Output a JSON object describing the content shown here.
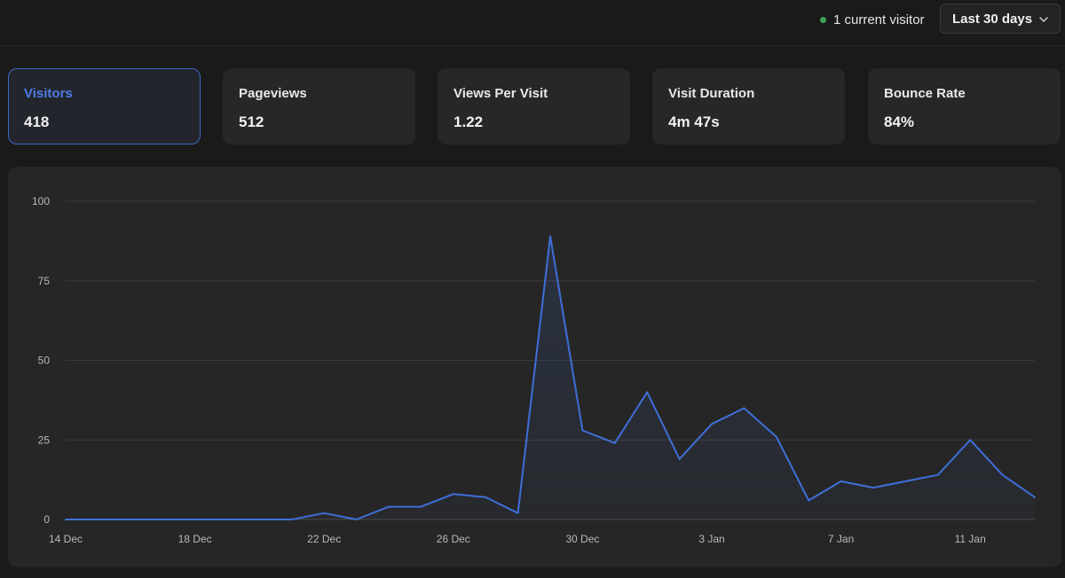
{
  "header": {
    "live_text": "1 current visitor",
    "range_label": "Last 30 days",
    "live_color": "#3fa45b"
  },
  "metrics": [
    {
      "label": "Visitors",
      "value": "418",
      "active": true
    },
    {
      "label": "Pageviews",
      "value": "512",
      "active": false
    },
    {
      "label": "Views Per Visit",
      "value": "1.22",
      "active": false
    },
    {
      "label": "Visit Duration",
      "value": "4m 47s",
      "active": false
    },
    {
      "label": "Bounce Rate",
      "value": "84%",
      "active": false
    }
  ],
  "chart_data": {
    "type": "line",
    "title": "",
    "xlabel": "",
    "ylabel": "",
    "ylim": [
      0,
      100
    ],
    "yticks": [
      "100",
      "75",
      "50",
      "25",
      "0"
    ],
    "ytick_values": [
      100,
      75,
      50,
      25,
      0
    ],
    "xtick_labels": [
      "14 Dec",
      "18 Dec",
      "22 Dec",
      "26 Dec",
      "30 Dec",
      "3 Jan",
      "7 Jan",
      "11 Jan"
    ],
    "xtick_index": [
      0,
      4,
      8,
      12,
      16,
      20,
      24,
      28
    ],
    "x": [
      "14 Dec",
      "15 Dec",
      "16 Dec",
      "17 Dec",
      "18 Dec",
      "19 Dec",
      "20 Dec",
      "21 Dec",
      "22 Dec",
      "23 Dec",
      "24 Dec",
      "25 Dec",
      "26 Dec",
      "27 Dec",
      "28 Dec",
      "29 Dec",
      "30 Dec",
      "31 Dec",
      "1 Jan",
      "2 Jan",
      "3 Jan",
      "4 Jan",
      "5 Jan",
      "6 Jan",
      "7 Jan",
      "8 Jan",
      "9 Jan",
      "10 Jan",
      "11 Jan",
      "12 Jan",
      "13 Jan"
    ],
    "series": [
      {
        "name": "Visitors",
        "color": "#3e6fd8",
        "values": [
          0,
          0,
          0,
          0,
          0,
          0,
          0,
          0,
          2,
          0,
          4,
          4,
          8,
          7,
          2,
          89,
          28,
          24,
          40,
          19,
          30,
          35,
          26,
          6,
          12,
          10,
          12,
          14,
          25,
          14,
          7
        ]
      }
    ],
    "grid": true
  }
}
